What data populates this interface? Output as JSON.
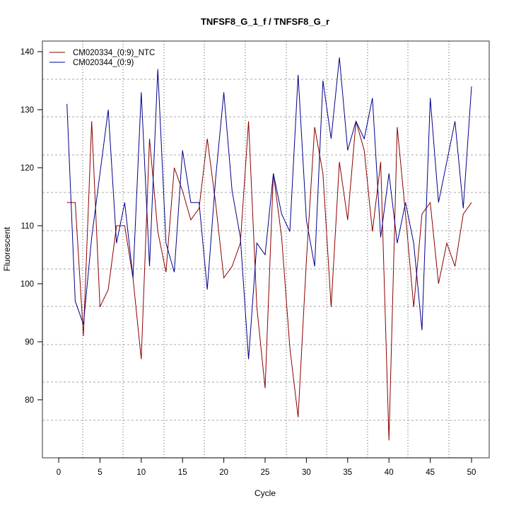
{
  "chart_data": {
    "type": "line",
    "title": "TNFSF8_G_1_f / TNFSF8_G_r",
    "xlabel": "Cycle",
    "ylabel": "Fluorescent",
    "xlim": [
      -4,
      52
    ],
    "ylim": [
      69,
      141
    ],
    "x_ticks": [
      0,
      5,
      10,
      15,
      20,
      25,
      30,
      35,
      40,
      45,
      50
    ],
    "x_tick_labels": [
      "0",
      "5",
      "10",
      "15",
      "20",
      "25",
      "30",
      "35",
      "40",
      "45",
      "50"
    ],
    "y_ticks": [
      80,
      90,
      100,
      110,
      120,
      130,
      140
    ],
    "y_tick_labels": [
      "80",
      "90",
      "100",
      "110",
      "120",
      "130",
      "140"
    ],
    "grid": true,
    "legend_position": "top-left",
    "x": [
      1,
      2,
      3,
      4,
      5,
      6,
      7,
      8,
      9,
      10,
      11,
      12,
      13,
      14,
      15,
      16,
      17,
      18,
      19,
      20,
      21,
      22,
      23,
      24,
      25,
      26,
      27,
      28,
      29,
      30,
      31,
      32,
      33,
      34,
      35,
      36,
      37,
      38,
      39,
      40,
      41,
      42,
      43,
      44,
      45,
      46,
      47,
      48,
      49,
      50
    ],
    "series": [
      {
        "name": "CM020334_(0:9)_NTC",
        "color": "#8b0000",
        "values": [
          114,
          114,
          91,
          128,
          96,
          99,
          110,
          110,
          101,
          87,
          125,
          109,
          102,
          120,
          116,
          111,
          113,
          125,
          114,
          101,
          103,
          107,
          128,
          96,
          82,
          119,
          108,
          89,
          77,
          104,
          127,
          119,
          96,
          121,
          111,
          128,
          123,
          109,
          121,
          73,
          127,
          112,
          96,
          112,
          114,
          100,
          107,
          103,
          112,
          114
        ]
      },
      {
        "name": "CM020344_(0:9)",
        "color": "#00008b",
        "values": [
          131,
          97,
          93,
          108,
          119,
          130,
          107,
          114,
          101,
          133,
          103,
          137,
          107,
          102,
          123,
          114,
          114,
          99,
          118,
          133,
          116,
          108,
          87,
          107,
          105,
          119,
          112,
          109,
          136,
          111,
          103,
          135,
          125,
          139,
          123,
          128,
          125,
          132,
          108,
          119,
          107,
          114,
          107,
          92,
          132,
          114,
          121,
          128,
          113,
          134
        ]
      }
    ]
  }
}
